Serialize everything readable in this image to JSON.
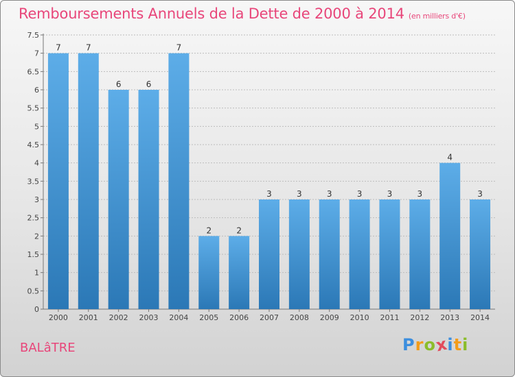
{
  "header": {
    "title": "Remboursements Annuels de la Dette de 2000 à 2014",
    "subtitle": "(en milliers d'€)"
  },
  "place_name": "BALâTRE",
  "logo": {
    "letters": [
      "P",
      "r",
      "o",
      "x",
      "i",
      "t",
      "i"
    ]
  },
  "colors": {
    "title": "#e8467a",
    "bar_top": "#5dade8",
    "bar_bottom": "#2b78b6",
    "grid": "#bcbcbc",
    "logo_letters": [
      "#3c8ede",
      "#f39c19",
      "#8bbd2a",
      "#e24b5b",
      "#3c8ede",
      "#f39c19",
      "#8bbd2a"
    ]
  },
  "chart_data": {
    "type": "bar",
    "categories": [
      "2000",
      "2001",
      "2002",
      "2003",
      "2004",
      "2005",
      "2006",
      "2007",
      "2008",
      "2009",
      "2010",
      "2011",
      "2012",
      "2013",
      "2014"
    ],
    "values": [
      7,
      7,
      6,
      6,
      7,
      2,
      2,
      3,
      3,
      3,
      3,
      3,
      3,
      4,
      3
    ],
    "data_labels": [
      "7",
      "7",
      "6",
      "6",
      "7",
      "2",
      "2",
      "3",
      "3",
      "3",
      "3",
      "3",
      "3",
      "4",
      "3"
    ],
    "y_ticks": [
      0,
      0.5,
      1,
      1.5,
      2,
      2.5,
      3,
      3.5,
      4,
      4.5,
      5,
      5.5,
      6,
      6.5,
      7,
      7.5
    ],
    "y_tick_labels": [
      "0",
      "0.5",
      "1",
      "1.5",
      "2",
      "2.5",
      "3",
      "3.5",
      "4",
      "4.5",
      "5",
      "5.5",
      "6",
      "6.5",
      "7",
      "7.5"
    ],
    "ylim": [
      0,
      7.5
    ],
    "grid": true,
    "legend": "none"
  }
}
